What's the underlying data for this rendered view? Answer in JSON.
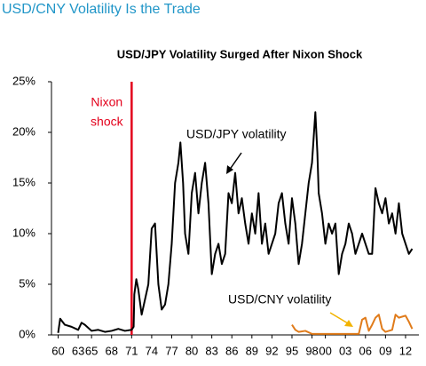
{
  "header": "USD/CNY Volatility Is the Trade",
  "chart_data": {
    "type": "line",
    "title": "USD/JPY Volatility Surged After Nixon Shock",
    "xlim": [
      1959,
      2014
    ],
    "xticks": [
      {
        "value": 1960,
        "label": "60"
      },
      {
        "value": 1963,
        "label": "63"
      },
      {
        "value": 1965,
        "label": "65"
      },
      {
        "value": 1968,
        "label": "68"
      },
      {
        "value": 1971,
        "label": "71"
      },
      {
        "value": 1974,
        "label": "74"
      },
      {
        "value": 1977,
        "label": "77"
      },
      {
        "value": 1980,
        "label": "80"
      },
      {
        "value": 1983,
        "label": "83"
      },
      {
        "value": 1986,
        "label": "86"
      },
      {
        "value": 1989,
        "label": "89"
      },
      {
        "value": 1992,
        "label": "92"
      },
      {
        "value": 1995,
        "label": "95"
      },
      {
        "value": 1998,
        "label": "98"
      },
      {
        "value": 2000,
        "label": "00"
      },
      {
        "value": 2003,
        "label": "03"
      },
      {
        "value": 2006,
        "label": "06"
      },
      {
        "value": 2009,
        "label": "09"
      },
      {
        "value": 2012,
        "label": "12"
      }
    ],
    "ylim": [
      0,
      25
    ],
    "yticks": [
      {
        "value": 0,
        "label": "0%"
      },
      {
        "value": 5,
        "label": "5%"
      },
      {
        "value": 10,
        "label": "10%"
      },
      {
        "value": 15,
        "label": "15%"
      },
      {
        "value": 20,
        "label": "20%"
      },
      {
        "value": 25,
        "label": "25%"
      }
    ],
    "annotations": [
      {
        "lines": [
          "Nixon",
          "shock"
        ],
        "x": 1971,
        "color": "#e3001b"
      }
    ],
    "series": [
      {
        "name": "USD/JPY volatility",
        "color": "#000000",
        "x": [
          1960,
          1960.3,
          1961,
          1962,
          1963,
          1963.5,
          1964,
          1965,
          1966,
          1967,
          1968,
          1969,
          1970,
          1971,
          1971.3,
          1971.4,
          1971.7,
          1972,
          1972.5,
          1973,
          1973.5,
          1974,
          1974.5,
          1975,
          1975.5,
          1976,
          1976.5,
          1977,
          1977.5,
          1978,
          1978.3,
          1978.7,
          1979,
          1979.5,
          1980,
          1980.5,
          1981,
          1981.5,
          1982,
          1982.5,
          1983,
          1983.5,
          1984,
          1984.5,
          1985,
          1985.5,
          1986,
          1986.5,
          1987,
          1987.5,
          1988,
          1988.5,
          1989,
          1989.5,
          1990,
          1990.5,
          1991,
          1991.5,
          1992,
          1992.5,
          1993,
          1993.5,
          1994,
          1994.5,
          1995,
          1995.5,
          1996,
          1996.5,
          1997,
          1997.5,
          1998,
          1998.5,
          1998.8,
          1999,
          1999.5,
          2000,
          2000.5,
          2001,
          2001.5,
          2002,
          2002.5,
          2003,
          2003.5,
          2004,
          2004.5,
          2005,
          2005.5,
          2006,
          2006.5,
          2007,
          2007.5,
          2008,
          2008.5,
          2009,
          2009.5,
          2010,
          2010.5,
          2011,
          2011.5,
          2012,
          2012.5,
          2013
        ],
        "values": [
          0.2,
          1.6,
          1.0,
          0.8,
          0.5,
          1.2,
          1.0,
          0.4,
          0.5,
          0.3,
          0.4,
          0.6,
          0.4,
          0.5,
          0.8,
          4,
          5.5,
          4.5,
          2,
          3.5,
          5,
          10.5,
          11,
          5,
          2.5,
          3,
          5,
          9,
          15,
          17,
          19,
          15,
          10,
          8,
          14,
          16,
          12,
          15,
          17,
          13,
          6,
          8,
          9,
          7,
          8,
          14,
          13,
          16,
          12,
          13.5,
          11,
          9,
          12,
          10,
          14,
          9,
          11,
          8,
          9,
          10,
          13,
          14,
          11,
          9,
          13.5,
          11,
          7,
          9,
          12,
          15,
          17,
          22,
          18,
          14,
          12,
          9,
          11,
          10,
          11,
          6,
          8,
          9,
          11,
          10,
          8,
          9,
          10,
          9,
          8,
          8,
          14.5,
          13,
          12,
          13.5,
          11,
          12,
          10,
          13,
          10,
          9,
          8,
          8.5
        ]
      },
      {
        "name": "USD/CNY volatility",
        "color": "#e07b1a",
        "x": [
          1995,
          1995.5,
          1996,
          1997,
          1998,
          1999,
          2000,
          2001,
          2002,
          2003,
          2004,
          2005,
          2005.5,
          2006,
          2006.5,
          2007,
          2007.5,
          2008,
          2008.5,
          2009,
          2010,
          2010.5,
          2011,
          2012,
          2012.5,
          2013
        ],
        "values": [
          1,
          0.5,
          0.3,
          0.4,
          0.1,
          0.1,
          0.1,
          0.1,
          0.1,
          0.1,
          0.1,
          0.1,
          1.5,
          1.7,
          0.4,
          1,
          1.7,
          2,
          0.6,
          0.3,
          0.5,
          2,
          1.7,
          1.9,
          1.3,
          0.6
        ]
      }
    ]
  }
}
